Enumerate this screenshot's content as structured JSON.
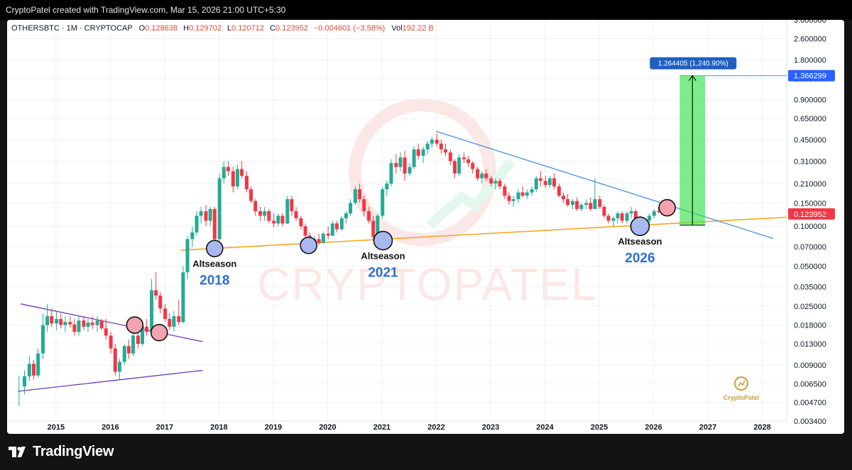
{
  "header": {
    "created_by": "CryptoPatel created with TradingView.com, Mar 15, 2026 21:00 UTC+5:30"
  },
  "legend": {
    "symbol": "OTHERSBTC · 1M · CRYPTOCAP",
    "o_label": "O",
    "o_value": "0.128638",
    "h_label": "H",
    "h_value": "0.129702",
    "l_label": "L",
    "l_value": "0.120712",
    "c_label": "C",
    "c_value": "0.123952",
    "change": "−0.004601 (−3.58%)",
    "vol_label": "Vol",
    "vol_value": "192.22 B"
  },
  "footer": {
    "brand": "TradingView"
  },
  "chart_data": {
    "type": "candlestick",
    "symbol": "OTHERSBTC",
    "interval": "1M",
    "exchange": "CRYPTOCAP",
    "y_scale": "log",
    "ylim": [
      0.0034,
      3.6
    ],
    "xlim": [
      2014.1,
      2028.45
    ],
    "x_ticks": [
      "2015",
      "2016",
      "2017",
      "2018",
      "2019",
      "2020",
      "2021",
      "2022",
      "2023",
      "2024",
      "2025",
      "2026",
      "2027",
      "2028"
    ],
    "y_ticks": [
      "3.600000",
      "2.600000",
      "1.800000",
      "1.300000",
      "0.900000",
      "0.650000",
      "0.450000",
      "0.310000",
      "0.210000",
      "0.150000",
      "0.100000",
      "0.070000",
      "0.050000",
      "0.035000",
      "0.025000",
      "0.018000",
      "0.013000",
      "0.009000",
      "0.006500",
      "0.004700",
      "0.003400"
    ],
    "last_price": "0.123952",
    "target_price": "1.366299",
    "projection": {
      "label": "1.264405 (1,240.90%)",
      "from": 0.102,
      "to": 1.366299,
      "x_start": 2026.48,
      "x_end": 2026.95
    },
    "wicks": [
      [
        2014.32,
        0.0044,
        0.0075
      ]
    ],
    "candles": [
      [
        2014.42,
        0.0062,
        0.0082,
        0.0054,
        0.0074
      ],
      [
        2014.51,
        0.0074,
        0.0105,
        0.0068,
        0.0092
      ],
      [
        2014.59,
        0.0092,
        0.0098,
        0.007,
        0.0075
      ],
      [
        2014.67,
        0.0075,
        0.012,
        0.0072,
        0.011
      ],
      [
        2014.76,
        0.011,
        0.022,
        0.01,
        0.018
      ],
      [
        2014.84,
        0.018,
        0.026,
        0.016,
        0.021
      ],
      [
        2014.92,
        0.021,
        0.024,
        0.0175,
        0.0185
      ],
      [
        2015.01,
        0.0185,
        0.023,
        0.0165,
        0.02
      ],
      [
        2015.09,
        0.02,
        0.022,
        0.017,
        0.018
      ],
      [
        2015.17,
        0.018,
        0.021,
        0.016,
        0.019
      ],
      [
        2015.26,
        0.019,
        0.021,
        0.0172,
        0.0182
      ],
      [
        2015.34,
        0.0182,
        0.02,
        0.015,
        0.016
      ],
      [
        2015.42,
        0.016,
        0.021,
        0.015,
        0.0195
      ],
      [
        2015.51,
        0.0195,
        0.021,
        0.0165,
        0.0175
      ],
      [
        2015.59,
        0.0175,
        0.02,
        0.016,
        0.0188
      ],
      [
        2015.67,
        0.0188,
        0.021,
        0.0168,
        0.018
      ],
      [
        2015.76,
        0.018,
        0.021,
        0.016,
        0.0195
      ],
      [
        2015.84,
        0.0195,
        0.02,
        0.0165,
        0.017
      ],
      [
        2015.92,
        0.017,
        0.02,
        0.014,
        0.015
      ],
      [
        2016.01,
        0.015,
        0.016,
        0.011,
        0.012
      ],
      [
        2016.09,
        0.012,
        0.013,
        0.0075,
        0.008
      ],
      [
        2016.17,
        0.008,
        0.01,
        0.007,
        0.0095
      ],
      [
        2016.26,
        0.0095,
        0.013,
        0.009,
        0.0125
      ],
      [
        2016.34,
        0.0125,
        0.014,
        0.01,
        0.011
      ],
      [
        2016.42,
        0.011,
        0.016,
        0.0105,
        0.015
      ],
      [
        2016.51,
        0.015,
        0.018,
        0.012,
        0.013
      ],
      [
        2016.59,
        0.013,
        0.019,
        0.0125,
        0.0175
      ],
      [
        2016.67,
        0.0175,
        0.02,
        0.015,
        0.016
      ],
      [
        2016.76,
        0.016,
        0.04,
        0.0155,
        0.033
      ],
      [
        2016.84,
        0.033,
        0.045,
        0.028,
        0.03
      ],
      [
        2016.92,
        0.03,
        0.032,
        0.022,
        0.024
      ],
      [
        2017.01,
        0.024,
        0.026,
        0.019,
        0.02
      ],
      [
        2017.09,
        0.02,
        0.022,
        0.0165,
        0.0175
      ],
      [
        2017.17,
        0.0175,
        0.023,
        0.016,
        0.021
      ],
      [
        2017.26,
        0.021,
        0.028,
        0.018,
        0.019
      ],
      [
        2017.34,
        0.019,
        0.05,
        0.0185,
        0.045
      ],
      [
        2017.42,
        0.045,
        0.085,
        0.04,
        0.08
      ],
      [
        2017.51,
        0.08,
        0.1,
        0.07,
        0.09
      ],
      [
        2017.59,
        0.09,
        0.13,
        0.085,
        0.12
      ],
      [
        2017.67,
        0.12,
        0.14,
        0.105,
        0.13
      ],
      [
        2017.76,
        0.13,
        0.145,
        0.1,
        0.11
      ],
      [
        2017.84,
        0.11,
        0.14,
        0.1,
        0.135
      ],
      [
        2017.92,
        0.135,
        0.14,
        0.072,
        0.08
      ],
      [
        2018.01,
        0.08,
        0.25,
        0.078,
        0.23
      ],
      [
        2018.09,
        0.23,
        0.31,
        0.21,
        0.28
      ],
      [
        2018.17,
        0.28,
        0.31,
        0.24,
        0.26
      ],
      [
        2018.26,
        0.26,
        0.28,
        0.18,
        0.2
      ],
      [
        2018.34,
        0.2,
        0.29,
        0.19,
        0.27
      ],
      [
        2018.42,
        0.27,
        0.31,
        0.23,
        0.24
      ],
      [
        2018.51,
        0.24,
        0.26,
        0.18,
        0.19
      ],
      [
        2018.59,
        0.19,
        0.2,
        0.15,
        0.155
      ],
      [
        2018.67,
        0.155,
        0.16,
        0.12,
        0.13
      ],
      [
        2018.76,
        0.13,
        0.14,
        0.11,
        0.12
      ],
      [
        2018.84,
        0.12,
        0.14,
        0.11,
        0.13
      ],
      [
        2018.92,
        0.13,
        0.135,
        0.105,
        0.11
      ],
      [
        2019.01,
        0.11,
        0.125,
        0.098,
        0.105
      ],
      [
        2019.09,
        0.105,
        0.125,
        0.1,
        0.12
      ],
      [
        2019.17,
        0.12,
        0.126,
        0.1,
        0.105
      ],
      [
        2019.26,
        0.105,
        0.17,
        0.104,
        0.16
      ],
      [
        2019.34,
        0.16,
        0.17,
        0.12,
        0.13
      ],
      [
        2019.42,
        0.13,
        0.14,
        0.11,
        0.115
      ],
      [
        2019.51,
        0.115,
        0.12,
        0.095,
        0.1
      ],
      [
        2019.59,
        0.1,
        0.105,
        0.08,
        0.085
      ],
      [
        2019.67,
        0.085,
        0.09,
        0.07,
        0.075
      ],
      [
        2019.76,
        0.075,
        0.085,
        0.072,
        0.08
      ],
      [
        2019.84,
        0.08,
        0.088,
        0.072,
        0.075
      ],
      [
        2019.92,
        0.075,
        0.09,
        0.074,
        0.088
      ],
      [
        2020.01,
        0.088,
        0.1,
        0.08,
        0.085
      ],
      [
        2020.09,
        0.085,
        0.11,
        0.084,
        0.105
      ],
      [
        2020.17,
        0.105,
        0.11,
        0.09,
        0.095
      ],
      [
        2020.26,
        0.095,
        0.12,
        0.092,
        0.115
      ],
      [
        2020.34,
        0.115,
        0.13,
        0.105,
        0.125
      ],
      [
        2020.42,
        0.125,
        0.16,
        0.12,
        0.15
      ],
      [
        2020.51,
        0.15,
        0.2,
        0.145,
        0.19
      ],
      [
        2020.59,
        0.19,
        0.21,
        0.15,
        0.16
      ],
      [
        2020.67,
        0.16,
        0.17,
        0.12,
        0.13
      ],
      [
        2020.76,
        0.13,
        0.14,
        0.105,
        0.11
      ],
      [
        2020.84,
        0.11,
        0.12,
        0.078,
        0.083
      ],
      [
        2020.92,
        0.083,
        0.125,
        0.082,
        0.12
      ],
      [
        2021.01,
        0.12,
        0.2,
        0.115,
        0.19
      ],
      [
        2021.09,
        0.19,
        0.22,
        0.17,
        0.21
      ],
      [
        2021.17,
        0.21,
        0.32,
        0.2,
        0.3
      ],
      [
        2021.26,
        0.3,
        0.35,
        0.25,
        0.28
      ],
      [
        2021.34,
        0.28,
        0.36,
        0.26,
        0.33
      ],
      [
        2021.42,
        0.33,
        0.37,
        0.22,
        0.25
      ],
      [
        2021.51,
        0.25,
        0.3,
        0.24,
        0.28
      ],
      [
        2021.59,
        0.28,
        0.4,
        0.27,
        0.38
      ],
      [
        2021.67,
        0.38,
        0.42,
        0.32,
        0.34
      ],
      [
        2021.76,
        0.34,
        0.4,
        0.3,
        0.38
      ],
      [
        2021.84,
        0.38,
        0.44,
        0.35,
        0.42
      ],
      [
        2021.92,
        0.42,
        0.47,
        0.39,
        0.45
      ],
      [
        2022.01,
        0.45,
        0.5,
        0.4,
        0.42
      ],
      [
        2022.09,
        0.42,
        0.45,
        0.35,
        0.38
      ],
      [
        2022.17,
        0.38,
        0.42,
        0.34,
        0.36
      ],
      [
        2022.26,
        0.36,
        0.38,
        0.29,
        0.31
      ],
      [
        2022.34,
        0.31,
        0.32,
        0.23,
        0.25
      ],
      [
        2022.42,
        0.25,
        0.35,
        0.24,
        0.33
      ],
      [
        2022.51,
        0.33,
        0.36,
        0.3,
        0.32
      ],
      [
        2022.59,
        0.32,
        0.34,
        0.28,
        0.3
      ],
      [
        2022.67,
        0.3,
        0.31,
        0.25,
        0.27
      ],
      [
        2022.76,
        0.27,
        0.28,
        0.22,
        0.23
      ],
      [
        2022.84,
        0.23,
        0.26,
        0.21,
        0.25
      ],
      [
        2022.92,
        0.25,
        0.27,
        0.22,
        0.23
      ],
      [
        2023.01,
        0.23,
        0.24,
        0.2,
        0.21
      ],
      [
        2023.09,
        0.21,
        0.23,
        0.19,
        0.22
      ],
      [
        2023.17,
        0.22,
        0.23,
        0.19,
        0.2
      ],
      [
        2023.26,
        0.2,
        0.21,
        0.16,
        0.17
      ],
      [
        2023.34,
        0.17,
        0.18,
        0.145,
        0.155
      ],
      [
        2023.42,
        0.155,
        0.17,
        0.14,
        0.16
      ],
      [
        2023.51,
        0.16,
        0.19,
        0.15,
        0.18
      ],
      [
        2023.59,
        0.18,
        0.2,
        0.165,
        0.17
      ],
      [
        2023.67,
        0.17,
        0.19,
        0.16,
        0.18
      ],
      [
        2023.76,
        0.18,
        0.2,
        0.17,
        0.19
      ],
      [
        2023.84,
        0.19,
        0.24,
        0.18,
        0.23
      ],
      [
        2023.92,
        0.23,
        0.26,
        0.2,
        0.22
      ],
      [
        2024.01,
        0.22,
        0.24,
        0.195,
        0.205
      ],
      [
        2024.09,
        0.205,
        0.24,
        0.195,
        0.23
      ],
      [
        2024.17,
        0.23,
        0.25,
        0.19,
        0.2
      ],
      [
        2024.26,
        0.2,
        0.21,
        0.165,
        0.17
      ],
      [
        2024.34,
        0.17,
        0.18,
        0.15,
        0.16
      ],
      [
        2024.42,
        0.16,
        0.175,
        0.14,
        0.145
      ],
      [
        2024.51,
        0.145,
        0.16,
        0.135,
        0.155
      ],
      [
        2024.59,
        0.155,
        0.165,
        0.13,
        0.135
      ],
      [
        2024.67,
        0.135,
        0.15,
        0.13,
        0.145
      ],
      [
        2024.76,
        0.145,
        0.16,
        0.135,
        0.15
      ],
      [
        2024.84,
        0.15,
        0.165,
        0.13,
        0.135
      ],
      [
        2024.92,
        0.135,
        0.23,
        0.135,
        0.16
      ],
      [
        2025.01,
        0.16,
        0.17,
        0.135,
        0.14
      ],
      [
        2025.09,
        0.14,
        0.145,
        0.115,
        0.12
      ],
      [
        2025.17,
        0.12,
        0.125,
        0.105,
        0.11
      ],
      [
        2025.26,
        0.11,
        0.12,
        0.1,
        0.115
      ],
      [
        2025.34,
        0.115,
        0.13,
        0.105,
        0.125
      ],
      [
        2025.42,
        0.125,
        0.13,
        0.105,
        0.11
      ],
      [
        2025.51,
        0.11,
        0.13,
        0.105,
        0.125
      ],
      [
        2025.59,
        0.125,
        0.14,
        0.115,
        0.13
      ],
      [
        2025.67,
        0.13,
        0.135,
        0.105,
        0.11
      ],
      [
        2025.76,
        0.11,
        0.12,
        0.095,
        0.1
      ],
      [
        2025.84,
        0.1,
        0.115,
        0.098,
        0.11
      ],
      [
        2025.92,
        0.11,
        0.125,
        0.105,
        0.12
      ],
      [
        2026.01,
        0.12,
        0.135,
        0.115,
        0.13
      ],
      [
        2026.09,
        0.13,
        0.14,
        0.125,
        0.1286
      ],
      [
        2026.17,
        0.128638,
        0.129702,
        0.120712,
        0.123952
      ]
    ],
    "lines": [
      {
        "name": "support-line",
        "color": "#f5a623",
        "from": [
          2017.3,
          0.066
        ],
        "to": [
          2028.45,
          0.117
        ]
      },
      {
        "name": "downtrend-line",
        "color": "#4a90e2",
        "from": [
          2022.0,
          0.52
        ],
        "to": [
          2028.2,
          0.081
        ]
      },
      {
        "name": "triangle-upper-line",
        "color": "#6c3fb5",
        "from": [
          2014.35,
          0.026
        ],
        "to": [
          2017.7,
          0.0135
        ]
      },
      {
        "name": "triangle-lower-line",
        "color": "#6c3fb5",
        "from": [
          2014.3,
          0.0057
        ],
        "to": [
          2017.7,
          0.0082
        ]
      },
      {
        "name": "target-line",
        "color": "#4a90e2",
        "from": [
          2026.48,
          1.366299
        ],
        "to": [
          2028.45,
          1.366299
        ]
      }
    ],
    "markers": [
      {
        "kind": "support",
        "x": 2017.92,
        "y": 0.068
      },
      {
        "kind": "support",
        "x": 2019.65,
        "y": 0.0718
      },
      {
        "kind": "support",
        "x": 2021.02,
        "y": 0.078
      },
      {
        "kind": "support",
        "x": 2025.75,
        "y": 0.1
      },
      {
        "kind": "breakout",
        "x": 2016.45,
        "y": 0.018
      },
      {
        "kind": "breakout",
        "x": 2016.9,
        "y": 0.0158
      },
      {
        "kind": "breakout",
        "x": 2026.25,
        "y": 0.138
      }
    ],
    "annotations": [
      {
        "label": "Altseason",
        "year": "2018",
        "x": 2017.92
      },
      {
        "label": "Altseason",
        "year": "2021",
        "x": 2021.02
      },
      {
        "label": "Altseason",
        "year": "2026",
        "x": 2025.75
      }
    ],
    "watermark": "CRYPTOPATEL",
    "logo_text": "CryptoPatel"
  }
}
